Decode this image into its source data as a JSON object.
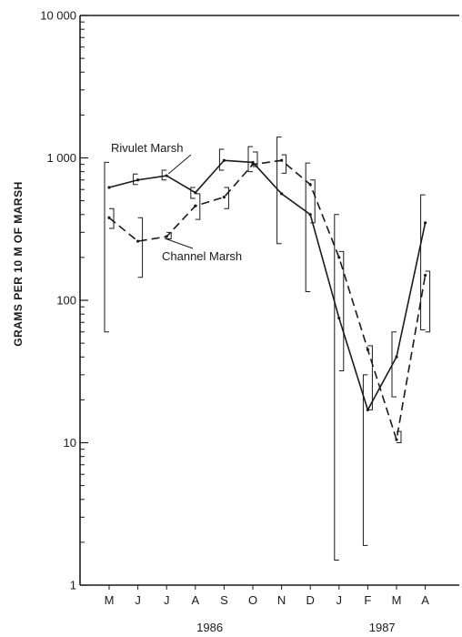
{
  "chart_data": {
    "type": "line",
    "ylabel": "GRAMS PER 10 M OF MARSH",
    "yscale": "log",
    "ylim": [
      1,
      10000
    ],
    "yticks": [
      {
        "value": 1,
        "label": "1"
      },
      {
        "value": 10,
        "label": "10"
      },
      {
        "value": 100,
        "label": "100"
      },
      {
        "value": 1000,
        "label": "1 000"
      },
      {
        "value": 10000,
        "label": "10 000"
      }
    ],
    "categories": [
      "M",
      "J",
      "J",
      "A",
      "S",
      "O",
      "N",
      "D",
      "J",
      "F",
      "M",
      "A"
    ],
    "year_labels": [
      {
        "label": "1986",
        "after_index": 3.5
      },
      {
        "label": "1987",
        "after_index": 9.5
      }
    ],
    "grid": false,
    "series": [
      {
        "name": "Rivulet Marsh",
        "line_style": "solid",
        "values": [
          620,
          700,
          750,
          570,
          960,
          930,
          560,
          400,
          75,
          17,
          40,
          350
        ],
        "error_low": [
          60,
          650,
          700,
          520,
          820,
          800,
          250,
          115,
          1.5,
          1.9,
          21,
          62
        ],
        "error_high": [
          930,
          770,
          820,
          620,
          1150,
          1200,
          1400,
          920,
          400,
          30,
          60,
          550
        ],
        "label_anchor_index": 2
      },
      {
        "name": "Channel Marsh",
        "line_style": "dashed",
        "values": [
          380,
          260,
          280,
          460,
          530,
          900,
          960,
          650,
          200,
          45,
          10.5,
          150
        ],
        "error_low": [
          320,
          145,
          270,
          370,
          440,
          870,
          780,
          350,
          32,
          17,
          10,
          60
        ],
        "error_high": [
          440,
          380,
          300,
          560,
          620,
          1100,
          1050,
          700,
          220,
          48,
          12,
          160
        ],
        "label_anchor_index": 2
      }
    ]
  }
}
